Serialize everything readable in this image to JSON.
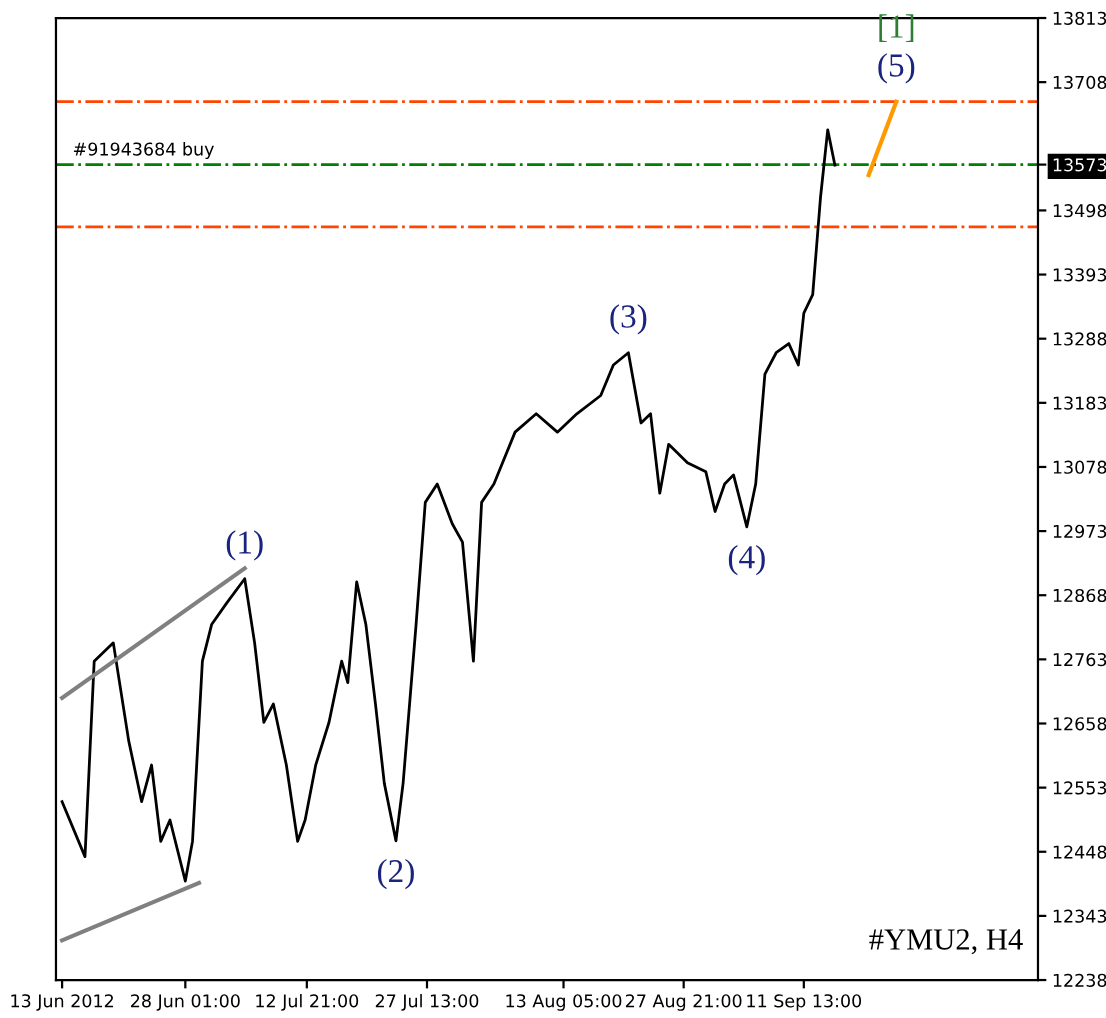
{
  "chart_data": {
    "type": "line",
    "xlim": [
      "2012-06-12T06:00",
      "2012-10-10T03:00"
    ],
    "ylim": [
      12238,
      13813
    ],
    "xticks": [
      {
        "value": "2012-06-13",
        "label": "13 Jun 2012"
      },
      {
        "value": "2012-06-28T01:00",
        "label": "28 Jun 01:00"
      },
      {
        "value": "2012-07-12T21:00",
        "label": "12 Jul 21:00"
      },
      {
        "value": "2012-07-27T13:00",
        "label": "27 Jul 13:00"
      },
      {
        "value": "2012-08-13T05:00",
        "label": "13 Aug 05:00"
      },
      {
        "value": "2012-08-27T21:00",
        "label": "27 Aug 21:00"
      },
      {
        "value": "2012-09-11T13:00",
        "label": "11 Sep 13:00"
      }
    ],
    "yticks": [
      12238,
      12343,
      12448,
      12553,
      12658,
      12763,
      12868,
      12973,
      13078,
      13183,
      13288,
      13393,
      13498,
      13573,
      13708,
      13813
    ],
    "series": [
      {
        "color": "#000000",
        "x": [
          "2012-06-13T00:00",
          "2012-06-15T19:00",
          "2012-06-16T22:00",
          "2012-06-19T06:00",
          "2012-06-21T03:00",
          "2012-06-22T17:00",
          "2012-06-23T22:00",
          "2012-06-25T01:00",
          "2012-06-26T04:00",
          "2012-06-28T01:00",
          "2012-06-28T22:00",
          "2012-06-30T03:00",
          "2012-07-01T06:00",
          "2012-07-03T02:00",
          "2012-07-05T07:00",
          "2012-07-06T12:00",
          "2012-07-07T15:00",
          "2012-07-08T19:00",
          "2012-07-10T09:00",
          "2012-07-11T18:00",
          "2012-07-12T16:00",
          "2012-07-13T23:00",
          "2012-07-15T14:00",
          "2012-07-17T03:00",
          "2012-07-17T21:00",
          "2012-07-18T23:00",
          "2012-07-20T02:00",
          "2012-07-21T06:00",
          "2012-07-22T08:00",
          "2012-07-23T18:00",
          "2012-07-24T15:00",
          "2012-07-26T05:00",
          "2012-07-27T08:00",
          "2012-07-28T19:00",
          "2012-07-30T15:00",
          "2012-07-31T21:00",
          "2012-08-02T05:00",
          "2012-08-03T05:00",
          "2012-08-04T17:00",
          "2012-08-07T07:00",
          "2012-08-09T21:00",
          "2012-08-12T11:00",
          "2012-08-14T20:00",
          "2012-08-17T18:00",
          "2012-08-19T07:00",
          "2012-08-21T03:00",
          "2012-08-22T16:00",
          "2012-08-23T20:00",
          "2012-08-24T23:00",
          "2012-08-26T01:00",
          "2012-08-28T08:00",
          "2012-08-30T14:00",
          "2012-08-31T17:00",
          "2012-09-01T21:00",
          "2012-09-02T23:00",
          "2012-09-04T14:00",
          "2012-09-05T16:00",
          "2012-09-06T19:00",
          "2012-09-08T04:00",
          "2012-09-09T17:00",
          "2012-09-10T21:00",
          "2012-09-11T13:00",
          "2012-09-12T15:00",
          "2012-09-13T14:00",
          "2012-09-14T11:00",
          "2012-09-15T08:00"
        ],
        "values": [
          12530,
          12440,
          12760,
          12790,
          12630,
          12530,
          12590,
          12465,
          12500,
          12400,
          12465,
          12760,
          12820,
          12855,
          12895,
          12790,
          12660,
          12690,
          12590,
          12465,
          12500,
          12590,
          12660,
          12760,
          12725,
          12890,
          12820,
          12690,
          12560,
          12466,
          12560,
          12820,
          13020,
          13050,
          12985,
          12955,
          12760,
          13020,
          13050,
          13135,
          13165,
          13135,
          13165,
          13195,
          13245,
          13265,
          13150,
          13165,
          13035,
          13115,
          13085,
          13070,
          13005,
          13050,
          13065,
          12980,
          13050,
          13230,
          13265,
          13280,
          13245,
          13330,
          13360,
          13520,
          13630,
          13572
        ]
      },
      {
        "color": "#808080",
        "x": [
          "2012-06-13T00:00",
          "2012-07-05T07:00"
        ],
        "values": [
          12700,
          12912
        ]
      },
      {
        "color": "#808080",
        "x": [
          "2012-06-13T00:00",
          "2012-06-29T17:00"
        ],
        "values": [
          12303,
          12397
        ]
      },
      {
        "color": "#ff9900",
        "x": [
          "2012-09-19T11:00",
          "2012-09-22T20:00"
        ],
        "values": [
          13556,
          13676
        ]
      }
    ],
    "ref_lines": [
      {
        "axis": "y",
        "value": 13676,
        "color": "#ff4500",
        "line_style": "dashdot"
      },
      {
        "axis": "y",
        "value": 13573,
        "label": "#91943684 buy",
        "color": "#008000",
        "line_style": "dashdot"
      },
      {
        "axis": "y",
        "value": 13471,
        "color": "#ff4500",
        "line_style": "dashdot"
      }
    ],
    "annotations": [
      {
        "text": "(1)",
        "x": "2012-07-05T07:00",
        "y": 12895
      },
      {
        "text": "(2)",
        "x": "2012-07-23T18:00",
        "y": 12466
      },
      {
        "text": "(3)",
        "x": "2012-08-21T03:00",
        "y": 13265
      },
      {
        "text": "(4)",
        "x": "2012-09-04T14:00",
        "y": 12980
      },
      {
        "text": "(5)",
        "x": "2012-09-22T20:00",
        "y": 13676
      },
      {
        "text": "[1]",
        "x": "2012-09-22T20:00",
        "y": 13676
      },
      "#YMU2, H4"
    ],
    "grid": false,
    "legend": false
  }
}
